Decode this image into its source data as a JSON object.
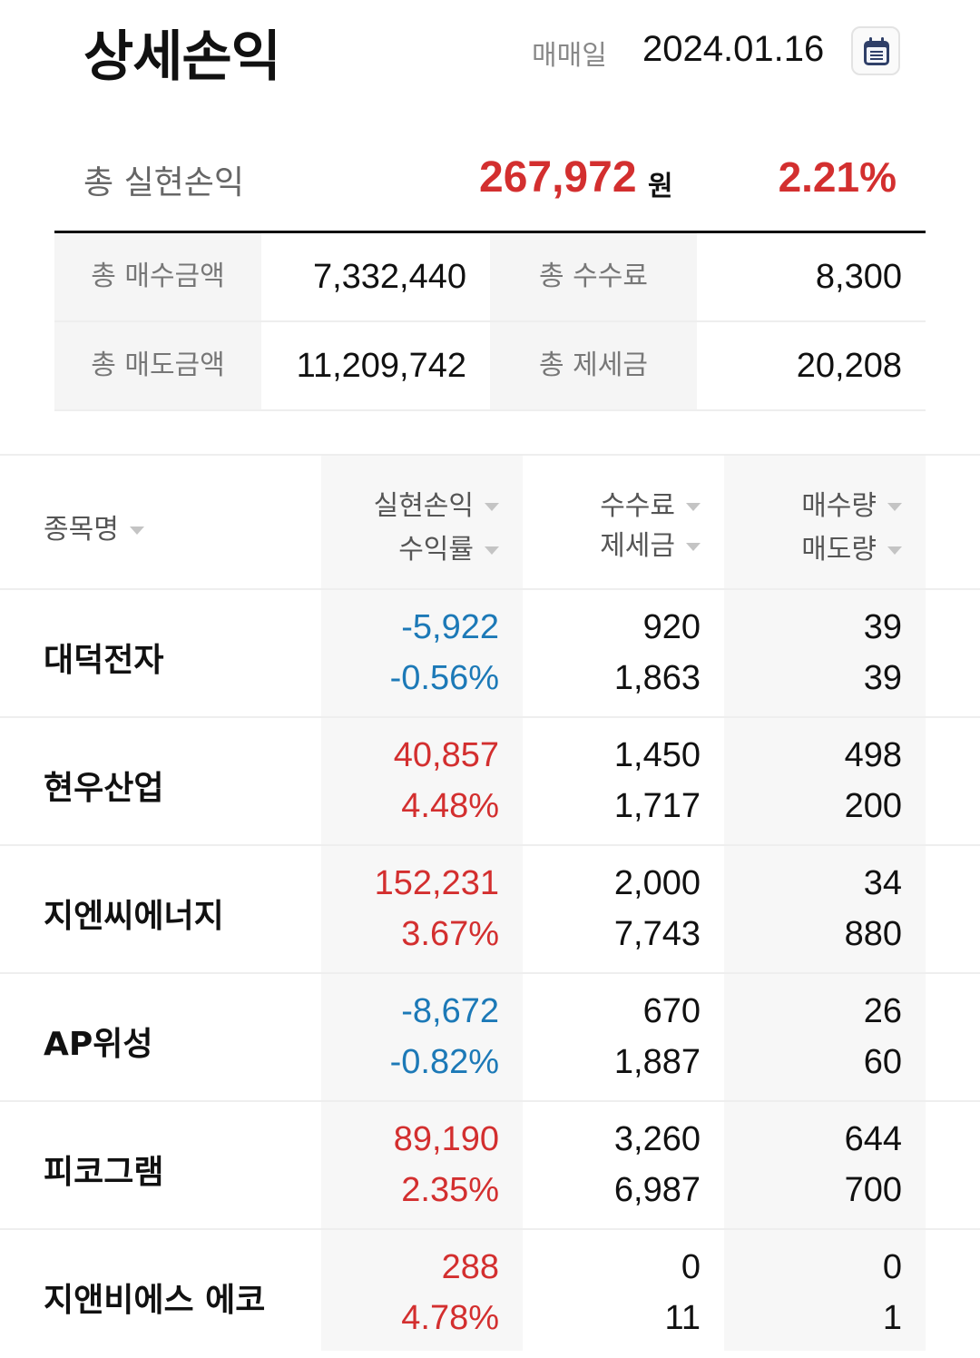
{
  "header": {
    "title": "상세손익",
    "date_label": "매매일",
    "date_value": "2024.01.16",
    "calendar_icon": "calendar-icon"
  },
  "total": {
    "label": "총 실현손익",
    "amount": "267,972",
    "unit": "원",
    "rate": "2.21%"
  },
  "summary": [
    {
      "label1": "총 매수금액",
      "value1": "7,332,440",
      "label2": "총 수수료",
      "value2": "8,300"
    },
    {
      "label1": "총 매도금액",
      "value1": "11,209,742",
      "label2": "총 제세금",
      "value2": "20,208"
    }
  ],
  "table": {
    "headers": {
      "name": "종목명",
      "profit": "실현손익",
      "rate": "수익률",
      "fee": "수수료",
      "tax": "제세금",
      "buy_qty": "매수량",
      "sell_qty": "매도량",
      "sort_icon": "sort-down-icon"
    },
    "rows": [
      {
        "name": "대덕전자",
        "profit": "-5,922",
        "rate": "-0.56%",
        "fee": "920",
        "tax": "1,863",
        "buy_qty": "39",
        "sell_qty": "39",
        "sign": "neg"
      },
      {
        "name": "현우산업",
        "profit": "40,857",
        "rate": "4.48%",
        "fee": "1,450",
        "tax": "1,717",
        "buy_qty": "498",
        "sell_qty": "200",
        "sign": "pos"
      },
      {
        "name": "지엔씨에너지",
        "profit": "152,231",
        "rate": "3.67%",
        "fee": "2,000",
        "tax": "7,743",
        "buy_qty": "34",
        "sell_qty": "880",
        "sign": "pos"
      },
      {
        "name": "AP위성",
        "profit": "-8,672",
        "rate": "-0.82%",
        "fee": "670",
        "tax": "1,887",
        "buy_qty": "26",
        "sell_qty": "60",
        "sign": "neg"
      },
      {
        "name": "피코그램",
        "profit": "89,190",
        "rate": "2.35%",
        "fee": "3,260",
        "tax": "6,987",
        "buy_qty": "644",
        "sell_qty": "700",
        "sign": "pos"
      },
      {
        "name": "지앤비에스 에코",
        "profit": "288",
        "rate": "4.78%",
        "fee": "0",
        "tax": "11",
        "buy_qty": "0",
        "sell_qty": "1",
        "sign": "pos"
      }
    ]
  },
  "colors": {
    "positive": "#d32f2f",
    "negative": "#1c79b7",
    "text": "#111111"
  }
}
